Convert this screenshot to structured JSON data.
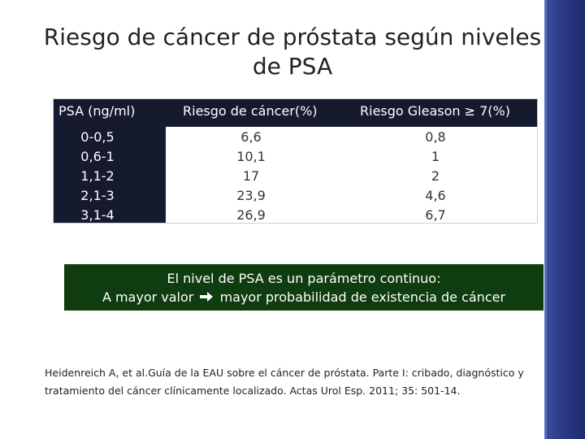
{
  "title": "Riesgo de cáncer de próstata según niveles de PSA",
  "table": {
    "headers": [
      "PSA (ng/ml)",
      "Riesgo de cáncer(%)",
      "Riesgo Gleason ≥ 7(%)"
    ],
    "rows": [
      [
        "0-0,5",
        "6,6",
        "0,8"
      ],
      [
        "0,6-1",
        "10,1",
        "1"
      ],
      [
        "1,1-2",
        "17",
        "2"
      ],
      [
        "2,1-3",
        "23,9",
        "4,6"
      ],
      [
        "3,1-4",
        "26,9",
        "6,7"
      ]
    ]
  },
  "note": {
    "line1": "El nivel de PSA es un parámetro continuo:",
    "line2_before": "A mayor  valor",
    "arrow_icon": "arrow-right-icon",
    "line2_after": "mayor probabilidad de existencia de cáncer"
  },
  "reference": "Heidenreich A, et al.Guía de la EAU sobre el cáncer de próstata. Parte I: cribado, diagnóstico y tratamiento del cáncer clínicamente localizado. Actas Urol Esp. 2011; 35: 501-14.",
  "colors": {
    "header_bg": "#161a2e",
    "note_bg": "#0f3d0f",
    "sidebar": "#2c3a86"
  }
}
